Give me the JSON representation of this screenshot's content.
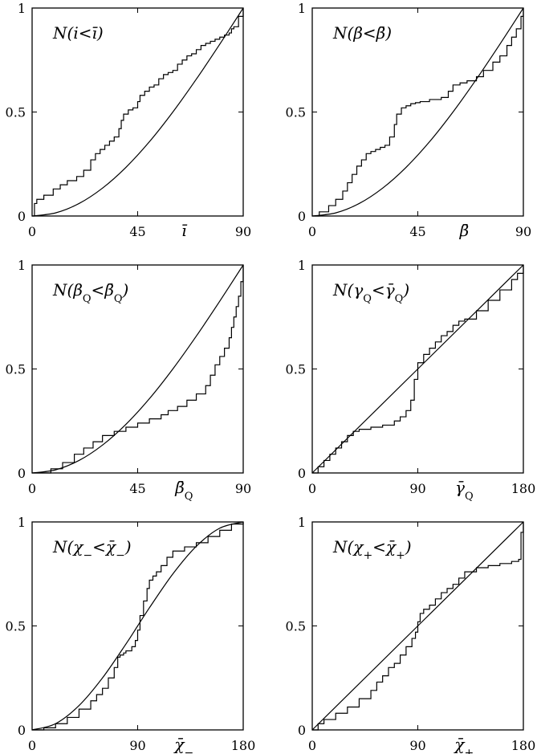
{
  "chart_data": [
    {
      "type": "line",
      "label": "N(i<ī)",
      "xlabel": "ī",
      "xlim": [
        0,
        90
      ],
      "ylim": [
        0,
        1
      ],
      "xticks": [
        "0",
        "45",
        "90"
      ],
      "yticks": [
        "0",
        "0.5",
        "1"
      ],
      "series": [
        {
          "style": "step",
          "x": [
            0,
            1,
            2,
            5,
            9,
            12,
            15,
            19,
            22,
            25,
            27,
            29,
            31,
            33,
            35,
            37,
            38,
            39,
            41,
            43,
            45,
            46,
            48,
            50,
            52,
            54,
            56,
            58,
            60,
            62,
            64,
            66,
            68,
            70,
            72,
            74,
            76,
            78,
            80,
            82,
            84,
            85,
            86,
            88,
            90
          ],
          "y": [
            0,
            0.06,
            0.08,
            0.1,
            0.13,
            0.15,
            0.17,
            0.19,
            0.22,
            0.27,
            0.3,
            0.32,
            0.34,
            0.36,
            0.38,
            0.42,
            0.46,
            0.49,
            0.51,
            0.52,
            0.55,
            0.58,
            0.6,
            0.62,
            0.63,
            0.66,
            0.68,
            0.69,
            0.7,
            0.73,
            0.75,
            0.77,
            0.78,
            0.8,
            0.82,
            0.83,
            0.84,
            0.85,
            0.86,
            0.87,
            0.88,
            0.9,
            0.91,
            0.96,
            1.0
          ]
        },
        {
          "style": "smooth",
          "x": [
            0,
            10,
            20,
            30,
            40,
            50,
            60,
            70,
            80,
            90
          ],
          "y": [
            0,
            0.015,
            0.06,
            0.134,
            0.234,
            0.357,
            0.5,
            0.658,
            0.826,
            1.0
          ]
        }
      ]
    },
    {
      "type": "line",
      "label": "N(β<β̄)",
      "xlabel": "β̄",
      "xlim": [
        0,
        90
      ],
      "ylim": [
        0,
        1
      ],
      "xticks": [
        "0",
        "45",
        "90"
      ],
      "yticks": [
        "0",
        "0.5",
        "1"
      ],
      "series": [
        {
          "style": "step",
          "x": [
            0,
            3,
            7,
            10,
            13,
            15,
            17,
            19,
            21,
            23,
            25,
            27,
            29,
            31,
            33,
            35,
            36,
            38,
            40,
            42,
            44,
            46,
            50,
            55,
            58,
            60,
            63,
            66,
            70,
            73,
            77,
            80,
            83,
            85,
            87,
            89,
            90
          ],
          "y": [
            0,
            0.02,
            0.05,
            0.08,
            0.12,
            0.16,
            0.2,
            0.24,
            0.27,
            0.3,
            0.31,
            0.32,
            0.33,
            0.34,
            0.38,
            0.44,
            0.49,
            0.52,
            0.53,
            0.54,
            0.545,
            0.55,
            0.56,
            0.57,
            0.6,
            0.63,
            0.64,
            0.65,
            0.67,
            0.7,
            0.74,
            0.77,
            0.82,
            0.86,
            0.9,
            0.96,
            1.0
          ]
        },
        {
          "style": "smooth",
          "x": [
            0,
            10,
            20,
            30,
            40,
            50,
            60,
            70,
            80,
            90
          ],
          "y": [
            0,
            0.015,
            0.06,
            0.134,
            0.234,
            0.357,
            0.5,
            0.658,
            0.826,
            1.0
          ]
        }
      ]
    },
    {
      "type": "line",
      "label": "N(β_Q<β̄_Q)",
      "xlabel": "β̄_Q",
      "xlim": [
        0,
        90
      ],
      "ylim": [
        0,
        1
      ],
      "xticks": [
        "0",
        "45",
        "90"
      ],
      "yticks": [
        "0",
        "0.5",
        "1"
      ],
      "series": [
        {
          "style": "step",
          "x": [
            0,
            8,
            13,
            18,
            22,
            26,
            30,
            35,
            40,
            45,
            50,
            55,
            58,
            62,
            66,
            70,
            74,
            76,
            78,
            80,
            82,
            84,
            85,
            86,
            87,
            88,
            89,
            90
          ],
          "y": [
            0,
            0.02,
            0.05,
            0.09,
            0.12,
            0.15,
            0.18,
            0.2,
            0.22,
            0.24,
            0.26,
            0.28,
            0.3,
            0.32,
            0.35,
            0.38,
            0.42,
            0.47,
            0.52,
            0.56,
            0.6,
            0.65,
            0.7,
            0.75,
            0.8,
            0.85,
            0.92,
            1.0
          ]
        },
        {
          "style": "smooth",
          "x": [
            0,
            10,
            20,
            30,
            40,
            50,
            60,
            70,
            80,
            90
          ],
          "y": [
            0,
            0.015,
            0.06,
            0.134,
            0.234,
            0.357,
            0.5,
            0.658,
            0.826,
            1.0
          ]
        }
      ]
    },
    {
      "type": "line",
      "label": "N(γ_Q<γ̄_Q)",
      "xlabel": "γ̄_Q",
      "xlim": [
        0,
        180
      ],
      "ylim": [
        0,
        1
      ],
      "xticks": [
        "0",
        "90",
        "180"
      ],
      "yticks": [
        "0",
        "0.5",
        "1"
      ],
      "series": [
        {
          "style": "step",
          "x": [
            0,
            5,
            10,
            15,
            20,
            25,
            30,
            35,
            40,
            50,
            60,
            70,
            75,
            80,
            84,
            87,
            90,
            95,
            100,
            105,
            110,
            115,
            120,
            125,
            130,
            140,
            150,
            160,
            170,
            175,
            180
          ],
          "y": [
            0,
            0.03,
            0.06,
            0.09,
            0.12,
            0.15,
            0.18,
            0.2,
            0.21,
            0.22,
            0.23,
            0.25,
            0.27,
            0.3,
            0.35,
            0.45,
            0.53,
            0.57,
            0.6,
            0.63,
            0.66,
            0.68,
            0.71,
            0.73,
            0.74,
            0.78,
            0.83,
            0.88,
            0.93,
            0.96,
            1.0
          ]
        },
        {
          "style": "smooth",
          "x": [
            0,
            180
          ],
          "y": [
            0,
            1.0
          ]
        }
      ]
    },
    {
      "type": "line",
      "label": "N(χ₋<χ̄₋)",
      "xlabel": "χ̄₋",
      "xlim": [
        0,
        180
      ],
      "ylim": [
        0,
        1
      ],
      "xticks": [
        "0",
        "90",
        "180"
      ],
      "yticks": [
        "0",
        "0.5",
        "1"
      ],
      "series": [
        {
          "style": "step",
          "x": [
            0,
            10,
            20,
            30,
            40,
            50,
            55,
            60,
            65,
            70,
            73,
            75,
            78,
            80,
            85,
            88,
            90,
            92,
            95,
            98,
            100,
            103,
            106,
            110,
            115,
            120,
            130,
            140,
            150,
            160,
            170,
            180
          ],
          "y": [
            0,
            0.01,
            0.03,
            0.06,
            0.1,
            0.14,
            0.17,
            0.2,
            0.25,
            0.3,
            0.35,
            0.36,
            0.37,
            0.38,
            0.4,
            0.43,
            0.48,
            0.55,
            0.62,
            0.68,
            0.72,
            0.74,
            0.76,
            0.79,
            0.83,
            0.86,
            0.88,
            0.9,
            0.93,
            0.96,
            0.99,
            1.0
          ]
        },
        {
          "style": "smooth",
          "x": [
            0,
            20,
            40,
            60,
            80,
            90,
            100,
            120,
            140,
            160,
            180
          ],
          "y": [
            0,
            0.03,
            0.117,
            0.25,
            0.413,
            0.5,
            0.587,
            0.75,
            0.883,
            0.97,
            1.0
          ]
        }
      ]
    },
    {
      "type": "line",
      "label": "N(χ₊<χ̄₊)",
      "xlabel": "χ̄₊",
      "xlim": [
        0,
        180
      ],
      "ylim": [
        0,
        1
      ],
      "xticks": [
        "0",
        "90",
        "180"
      ],
      "yticks": [
        "0",
        "0.5",
        "1"
      ],
      "series": [
        {
          "style": "step",
          "x": [
            0,
            5,
            10,
            20,
            30,
            40,
            50,
            55,
            60,
            65,
            70,
            75,
            80,
            85,
            88,
            90,
            92,
            95,
            100,
            105,
            110,
            115,
            120,
            125,
            130,
            140,
            150,
            160,
            170,
            176,
            178,
            180
          ],
          "y": [
            0,
            0.03,
            0.05,
            0.08,
            0.11,
            0.15,
            0.19,
            0.23,
            0.26,
            0.3,
            0.32,
            0.36,
            0.4,
            0.44,
            0.47,
            0.52,
            0.56,
            0.58,
            0.6,
            0.63,
            0.66,
            0.68,
            0.7,
            0.73,
            0.76,
            0.78,
            0.79,
            0.8,
            0.81,
            0.82,
            0.95,
            1.0
          ]
        },
        {
          "style": "smooth",
          "x": [
            0,
            180
          ],
          "y": [
            0,
            1.0
          ]
        }
      ]
    }
  ]
}
